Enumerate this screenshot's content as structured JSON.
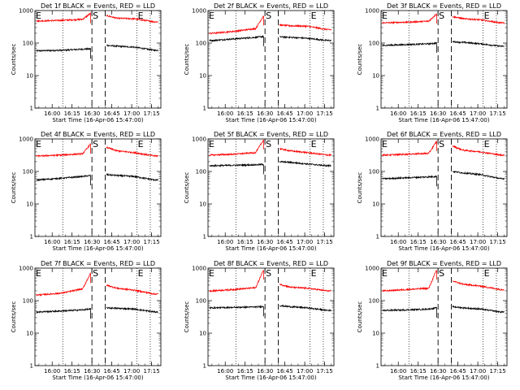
{
  "chart_data": {
    "type": "line",
    "layout": "3x3",
    "y_axis": {
      "label": "Counts/sec",
      "scale": "log",
      "ylim": [
        1,
        1000
      ],
      "tick_labels": [
        "1",
        "10",
        "100",
        "1000"
      ]
    },
    "x_axis": {
      "label": "Start Time (16-Apr-06 15:47:00)",
      "tick_labels": [
        "16:00",
        "16:15",
        "16:30",
        "16:45",
        "17:00",
        "17:15"
      ],
      "tick_minutes": [
        13,
        28,
        43,
        58,
        73,
        88
      ],
      "xlim_minutes": [
        0,
        95
      ]
    },
    "markers": [
      {
        "label": "S",
        "x_minute": 43
      },
      {
        "label": "E",
        "x_minute": 77
      }
    ],
    "dashed_lines_x_minutes": [
      43,
      53
    ],
    "dotted_lines_x_minutes": [
      77,
      87
    ],
    "colors": {
      "events": "#000000",
      "lld": "#ff0000"
    },
    "gap_minutes": [
      43,
      53
    ],
    "panels": [
      {
        "title": "Det 1f BLACK = Events, RED = LLD",
        "dotted_before_minute": 21,
        "series": [
          {
            "name": "Events",
            "color": "#000000",
            "x": [
              3,
              20,
              36,
              42,
              54,
              62,
              75,
              90
            ],
            "y": [
              58,
              60,
              65,
              66,
              85,
              80,
              75,
              60
            ]
          },
          {
            "name": "LLD",
            "color": "#ff0000",
            "x": [
              3,
              20,
              36,
              42,
              54,
              62,
              75,
              90
            ],
            "y": [
              480,
              500,
              540,
              820,
              700,
              580,
              560,
              450
            ]
          }
        ]
      },
      {
        "title": "Det 2f BLACK = Events, RED = LLD",
        "dotted_before_minute": 21,
        "series": [
          {
            "name": "Events",
            "color": "#000000",
            "x": [
              3,
              20,
              36,
              42,
              54,
              62,
              75,
              90
            ],
            "y": [
              120,
              135,
              150,
              160,
              155,
              150,
              140,
              120
            ]
          },
          {
            "name": "LLD",
            "color": "#ff0000",
            "x": [
              3,
              20,
              36,
              42,
              54,
              62,
              75,
              90
            ],
            "y": [
              200,
              230,
              280,
              700,
              360,
              340,
              330,
              260
            ]
          }
        ]
      },
      {
        "title": "Det 3f BLACK = Events, RED = LLD",
        "dotted_before_minute": 21,
        "series": [
          {
            "name": "Events",
            "color": "#000000",
            "x": [
              3,
              20,
              36,
              42,
              54,
              62,
              75,
              90
            ],
            "y": [
              85,
              90,
              95,
              100,
              110,
              105,
              95,
              80
            ]
          },
          {
            "name": "LLD",
            "color": "#ff0000",
            "x": [
              3,
              20,
              36,
              42,
              54,
              62,
              75,
              90
            ],
            "y": [
              420,
              440,
              470,
              800,
              650,
              560,
              520,
              420
            ]
          }
        ]
      },
      {
        "title": "Det 4f BLACK = Events, RED = LLD",
        "dotted_before_minute": 21,
        "series": [
          {
            "name": "Events",
            "color": "#000000",
            "x": [
              3,
              20,
              36,
              42,
              54,
              62,
              75,
              90
            ],
            "y": [
              55,
              62,
              70,
              75,
              80,
              75,
              70,
              55
            ]
          },
          {
            "name": "LLD",
            "color": "#ff0000",
            "x": [
              3,
              20,
              36,
              42,
              54,
              62,
              75,
              90
            ],
            "y": [
              300,
              320,
              350,
              700,
              550,
              430,
              380,
              300
            ]
          }
        ]
      },
      {
        "title": "Det 5f BLACK = Events, RED = LLD",
        "dotted_before_minute": 21,
        "series": [
          {
            "name": "Events",
            "color": "#000000",
            "x": [
              3,
              20,
              36,
              42,
              54,
              62,
              75,
              90
            ],
            "y": [
              150,
              155,
              160,
              165,
              200,
              190,
              170,
              150
            ]
          },
          {
            "name": "LLD",
            "color": "#ff0000",
            "x": [
              3,
              20,
              36,
              42,
              54,
              62,
              75,
              90
            ],
            "y": [
              320,
              340,
              380,
              950,
              500,
              430,
              380,
              320
            ]
          }
        ]
      },
      {
        "title": "Det 6f BLACK = Events, RED = LLD",
        "dotted_before_minute": 21,
        "series": [
          {
            "name": "Events",
            "color": "#000000",
            "x": [
              3,
              20,
              36,
              42,
              54,
              62,
              75,
              90
            ],
            "y": [
              60,
              64,
              68,
              70,
              100,
              90,
              80,
              60
            ]
          },
          {
            "name": "LLD",
            "color": "#ff0000",
            "x": [
              3,
              20,
              36,
              42,
              54,
              62,
              75,
              90
            ],
            "y": [
              320,
              340,
              360,
              850,
              600,
              450,
              400,
              320
            ]
          }
        ]
      },
      {
        "title": "Det 7f BLACK = Events, RED = LLD",
        "dotted_before_minute": 21,
        "series": [
          {
            "name": "Events",
            "color": "#000000",
            "x": [
              3,
              20,
              36,
              42,
              54,
              62,
              75,
              90
            ],
            "y": [
              45,
              48,
              52,
              55,
              60,
              58,
              55,
              45
            ]
          },
          {
            "name": "LLD",
            "color": "#ff0000",
            "x": [
              3,
              20,
              36,
              42,
              54,
              62,
              75,
              90
            ],
            "y": [
              150,
              170,
              230,
              700,
              300,
              240,
              210,
              160
            ]
          }
        ]
      },
      {
        "title": "Det 8f BLACK = Events, RED = LLD",
        "dotted_before_minute": 21,
        "series": [
          {
            "name": "Events",
            "color": "#000000",
            "x": [
              3,
              20,
              36,
              42,
              54,
              62,
              75,
              90
            ],
            "y": [
              60,
              62,
              64,
              66,
              70,
              65,
              60,
              50
            ]
          },
          {
            "name": "LLD",
            "color": "#ff0000",
            "x": [
              3,
              20,
              36,
              42,
              54,
              62,
              75,
              90
            ],
            "y": [
              200,
              220,
              250,
              900,
              320,
              260,
              240,
              200
            ]
          }
        ]
      },
      {
        "title": "Det 9f BLACK = Events, RED = LLD",
        "dotted_before_minute": 21,
        "series": [
          {
            "name": "Events",
            "color": "#000000",
            "x": [
              3,
              20,
              36,
              42,
              54,
              62,
              75,
              90
            ],
            "y": [
              50,
              52,
              55,
              60,
              65,
              60,
              55,
              45
            ]
          },
          {
            "name": "LLD",
            "color": "#ff0000",
            "x": [
              3,
              20,
              36,
              42,
              54,
              62,
              75,
              90
            ],
            "y": [
              200,
              220,
              240,
              900,
              400,
              320,
              280,
              220
            ]
          }
        ]
      }
    ]
  }
}
